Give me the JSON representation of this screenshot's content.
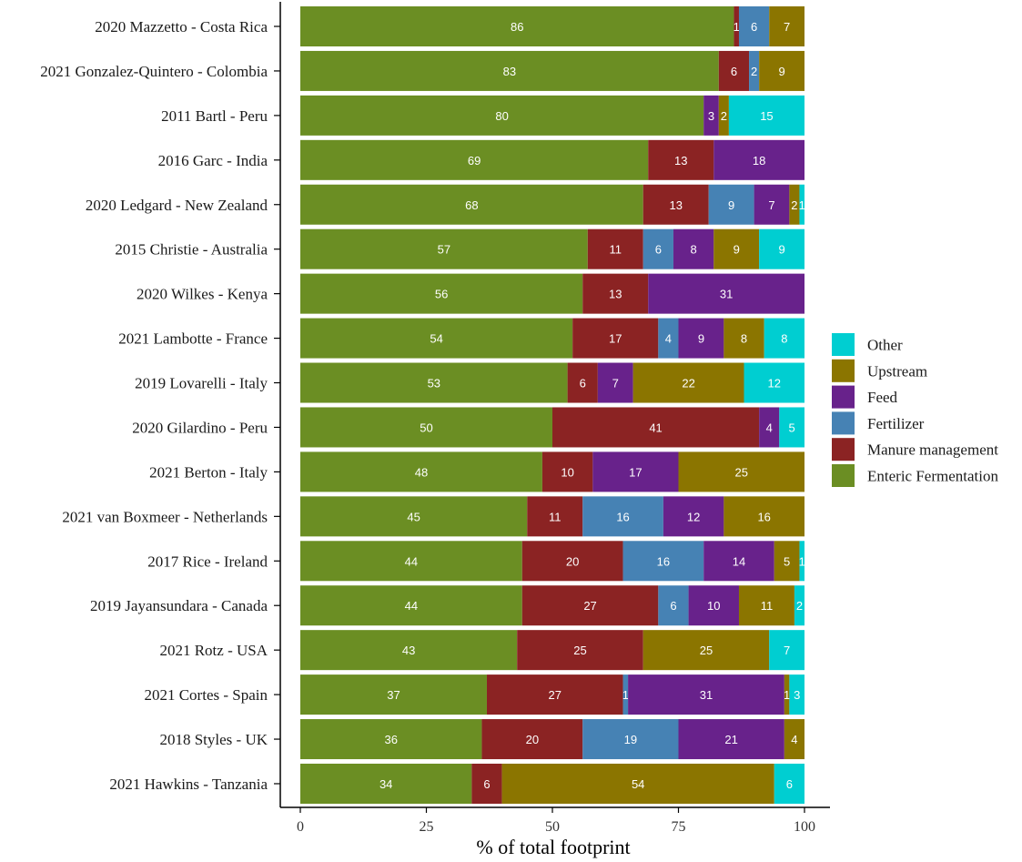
{
  "chart_data": {
    "type": "bar",
    "orientation": "horizontal",
    "stacked": true,
    "xlabel": "% of total footprint",
    "ylabel": "",
    "xlim": [
      0,
      100
    ],
    "x_ticks": [
      "0",
      "25",
      "50",
      "75",
      "100"
    ],
    "grid": false,
    "legend_position": "right",
    "categories": [
      "2020 Mazzetto - Costa Rica",
      "2021 Gonzalez-Quintero - Colombia",
      "2011 Bartl - Peru",
      "2016 Garc - India",
      "2020 Ledgard - New Zealand",
      "2015 Christie - Australia",
      "2020 Wilkes - Kenya",
      "2021 Lambotte - France",
      "2019 Lovarelli - Italy",
      "2020 Gilardino - Peru",
      "2021 Berton - Italy",
      "2021 van Boxmeer - Netherlands",
      "2017 Rice - Ireland",
      "2019 Jayansundara - Canada",
      "2021 Rotz - USA",
      "2021 Cortes - Spain",
      "2018 Styles - UK",
      "2021 Hawkins - Tanzania"
    ],
    "series": [
      {
        "name": "Enteric Fermentation",
        "color": "#6b8e23",
        "values": [
          86,
          83,
          80,
          69,
          68,
          57,
          56,
          54,
          53,
          50,
          48,
          45,
          44,
          44,
          43,
          37,
          36,
          34
        ]
      },
      {
        "name": "Manure management",
        "color": "#8b2323",
        "values": [
          1,
          6,
          0,
          13,
          13,
          11,
          13,
          17,
          6,
          41,
          10,
          11,
          20,
          27,
          25,
          27,
          20,
          6
        ]
      },
      {
        "name": "Fertilizer",
        "color": "#4682b4",
        "values": [
          6,
          2,
          0,
          0,
          9,
          6,
          0,
          4,
          0,
          0,
          0,
          16,
          16,
          6,
          0,
          1,
          19,
          0
        ]
      },
      {
        "name": "Feed",
        "color": "#68228b",
        "values": [
          0,
          0,
          3,
          18,
          7,
          8,
          31,
          9,
          7,
          4,
          17,
          12,
          14,
          10,
          0,
          31,
          21,
          0
        ]
      },
      {
        "name": "Upstream",
        "color": "#8b7500",
        "values": [
          7,
          9,
          2,
          0,
          2,
          9,
          0,
          8,
          22,
          0,
          25,
          16,
          5,
          11,
          25,
          1,
          4,
          54
        ]
      },
      {
        "name": "Other",
        "color": "#00ced1",
        "values": [
          0,
          0,
          15,
          0,
          1,
          9,
          0,
          8,
          12,
          5,
          0,
          0,
          1,
          2,
          7,
          3,
          0,
          6
        ]
      }
    ],
    "legend_order": [
      "Other",
      "Upstream",
      "Feed",
      "Fertilizer",
      "Manure management",
      "Enteric Fermentation"
    ]
  }
}
